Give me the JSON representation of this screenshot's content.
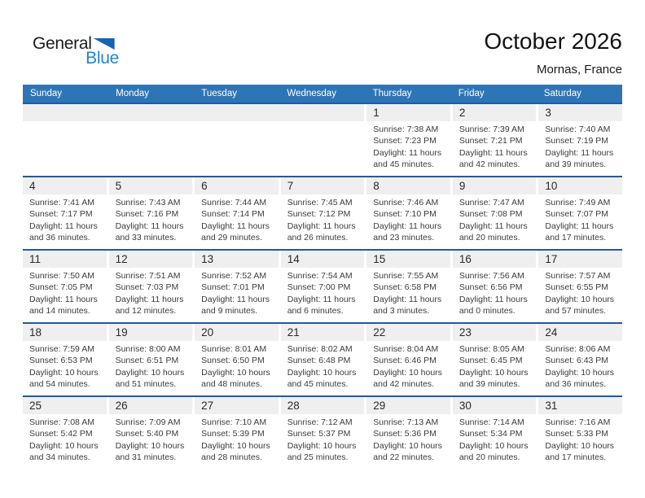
{
  "logo": {
    "part1": "General",
    "part2": "Blue"
  },
  "header": {
    "title": "October 2026",
    "subtitle": "Mornas, France"
  },
  "colors": {
    "header-bar": "#2e75b6",
    "row-border": "#215c9a",
    "strip-bg": "#efefef",
    "logo-blue": "#1d87cf",
    "logo-triangle": "#1565b0"
  },
  "calendar": {
    "day_headers": [
      "Sunday",
      "Monday",
      "Tuesday",
      "Wednesday",
      "Thursday",
      "Friday",
      "Saturday"
    ],
    "weeks": [
      {
        "empty_leading": 4,
        "days": [
          {
            "num": "1",
            "sunrise": "Sunrise: 7:38 AM",
            "sunset": "Sunset: 7:23 PM",
            "daylight": "Daylight: 11 hours and 45 minutes."
          },
          {
            "num": "2",
            "sunrise": "Sunrise: 7:39 AM",
            "sunset": "Sunset: 7:21 PM",
            "daylight": "Daylight: 11 hours and 42 minutes."
          },
          {
            "num": "3",
            "sunrise": "Sunrise: 7:40 AM",
            "sunset": "Sunset: 7:19 PM",
            "daylight": "Daylight: 11 hours and 39 minutes."
          }
        ]
      },
      {
        "empty_leading": 0,
        "days": [
          {
            "num": "4",
            "sunrise": "Sunrise: 7:41 AM",
            "sunset": "Sunset: 7:17 PM",
            "daylight": "Daylight: 11 hours and 36 minutes."
          },
          {
            "num": "5",
            "sunrise": "Sunrise: 7:43 AM",
            "sunset": "Sunset: 7:16 PM",
            "daylight": "Daylight: 11 hours and 33 minutes."
          },
          {
            "num": "6",
            "sunrise": "Sunrise: 7:44 AM",
            "sunset": "Sunset: 7:14 PM",
            "daylight": "Daylight: 11 hours and 29 minutes."
          },
          {
            "num": "7",
            "sunrise": "Sunrise: 7:45 AM",
            "sunset": "Sunset: 7:12 PM",
            "daylight": "Daylight: 11 hours and 26 minutes."
          },
          {
            "num": "8",
            "sunrise": "Sunrise: 7:46 AM",
            "sunset": "Sunset: 7:10 PM",
            "daylight": "Daylight: 11 hours and 23 minutes."
          },
          {
            "num": "9",
            "sunrise": "Sunrise: 7:47 AM",
            "sunset": "Sunset: 7:08 PM",
            "daylight": "Daylight: 11 hours and 20 minutes."
          },
          {
            "num": "10",
            "sunrise": "Sunrise: 7:49 AM",
            "sunset": "Sunset: 7:07 PM",
            "daylight": "Daylight: 11 hours and 17 minutes."
          }
        ]
      },
      {
        "empty_leading": 0,
        "days": [
          {
            "num": "11",
            "sunrise": "Sunrise: 7:50 AM",
            "sunset": "Sunset: 7:05 PM",
            "daylight": "Daylight: 11 hours and 14 minutes."
          },
          {
            "num": "12",
            "sunrise": "Sunrise: 7:51 AM",
            "sunset": "Sunset: 7:03 PM",
            "daylight": "Daylight: 11 hours and 12 minutes."
          },
          {
            "num": "13",
            "sunrise": "Sunrise: 7:52 AM",
            "sunset": "Sunset: 7:01 PM",
            "daylight": "Daylight: 11 hours and 9 minutes."
          },
          {
            "num": "14",
            "sunrise": "Sunrise: 7:54 AM",
            "sunset": "Sunset: 7:00 PM",
            "daylight": "Daylight: 11 hours and 6 minutes."
          },
          {
            "num": "15",
            "sunrise": "Sunrise: 7:55 AM",
            "sunset": "Sunset: 6:58 PM",
            "daylight": "Daylight: 11 hours and 3 minutes."
          },
          {
            "num": "16",
            "sunrise": "Sunrise: 7:56 AM",
            "sunset": "Sunset: 6:56 PM",
            "daylight": "Daylight: 11 hours and 0 minutes."
          },
          {
            "num": "17",
            "sunrise": "Sunrise: 7:57 AM",
            "sunset": "Sunset: 6:55 PM",
            "daylight": "Daylight: 10 hours and 57 minutes."
          }
        ]
      },
      {
        "empty_leading": 0,
        "days": [
          {
            "num": "18",
            "sunrise": "Sunrise: 7:59 AM",
            "sunset": "Sunset: 6:53 PM",
            "daylight": "Daylight: 10 hours and 54 minutes."
          },
          {
            "num": "19",
            "sunrise": "Sunrise: 8:00 AM",
            "sunset": "Sunset: 6:51 PM",
            "daylight": "Daylight: 10 hours and 51 minutes."
          },
          {
            "num": "20",
            "sunrise": "Sunrise: 8:01 AM",
            "sunset": "Sunset: 6:50 PM",
            "daylight": "Daylight: 10 hours and 48 minutes."
          },
          {
            "num": "21",
            "sunrise": "Sunrise: 8:02 AM",
            "sunset": "Sunset: 6:48 PM",
            "daylight": "Daylight: 10 hours and 45 minutes."
          },
          {
            "num": "22",
            "sunrise": "Sunrise: 8:04 AM",
            "sunset": "Sunset: 6:46 PM",
            "daylight": "Daylight: 10 hours and 42 minutes."
          },
          {
            "num": "23",
            "sunrise": "Sunrise: 8:05 AM",
            "sunset": "Sunset: 6:45 PM",
            "daylight": "Daylight: 10 hours and 39 minutes."
          },
          {
            "num": "24",
            "sunrise": "Sunrise: 8:06 AM",
            "sunset": "Sunset: 6:43 PM",
            "daylight": "Daylight: 10 hours and 36 minutes."
          }
        ]
      },
      {
        "empty_leading": 0,
        "days": [
          {
            "num": "25",
            "sunrise": "Sunrise: 7:08 AM",
            "sunset": "Sunset: 5:42 PM",
            "daylight": "Daylight: 10 hours and 34 minutes."
          },
          {
            "num": "26",
            "sunrise": "Sunrise: 7:09 AM",
            "sunset": "Sunset: 5:40 PM",
            "daylight": "Daylight: 10 hours and 31 minutes."
          },
          {
            "num": "27",
            "sunrise": "Sunrise: 7:10 AM",
            "sunset": "Sunset: 5:39 PM",
            "daylight": "Daylight: 10 hours and 28 minutes."
          },
          {
            "num": "28",
            "sunrise": "Sunrise: 7:12 AM",
            "sunset": "Sunset: 5:37 PM",
            "daylight": "Daylight: 10 hours and 25 minutes."
          },
          {
            "num": "29",
            "sunrise": "Sunrise: 7:13 AM",
            "sunset": "Sunset: 5:36 PM",
            "daylight": "Daylight: 10 hours and 22 minutes."
          },
          {
            "num": "30",
            "sunrise": "Sunrise: 7:14 AM",
            "sunset": "Sunset: 5:34 PM",
            "daylight": "Daylight: 10 hours and 20 minutes."
          },
          {
            "num": "31",
            "sunrise": "Sunrise: 7:16 AM",
            "sunset": "Sunset: 5:33 PM",
            "daylight": "Daylight: 10 hours and 17 minutes."
          }
        ]
      }
    ]
  }
}
